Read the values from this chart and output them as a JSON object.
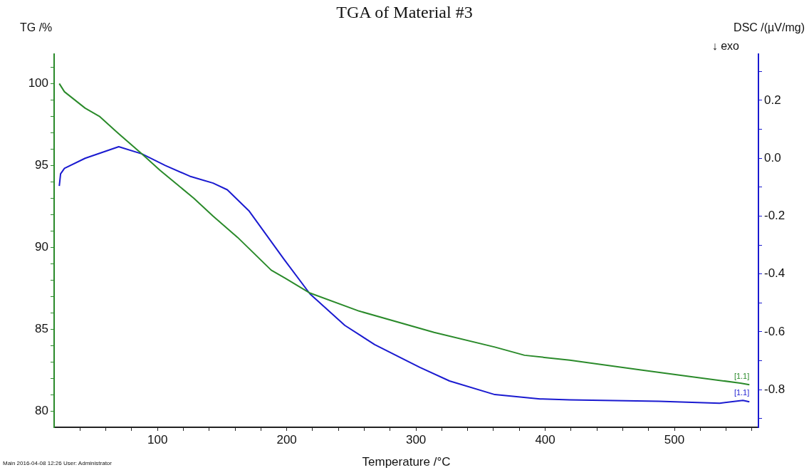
{
  "chart_data": {
    "type": "line",
    "title": "TGA of Material #3",
    "xlabel": "Temperature /°C",
    "ylabel": "TG /%",
    "y2label": "DSC /(µV/mg)",
    "xlim": [
      20,
      565
    ],
    "xticks": [
      {
        "value": 40,
        "label": null
      },
      {
        "value": 60,
        "label": null
      },
      {
        "value": 80,
        "label": null
      },
      100,
      {
        "value": 120,
        "label": null
      },
      {
        "value": 140,
        "label": null
      },
      {
        "value": 160,
        "label": null
      },
      {
        "value": 180,
        "label": null
      },
      200,
      {
        "value": 220,
        "label": null
      },
      {
        "value": 240,
        "label": null
      },
      {
        "value": 260,
        "label": null
      },
      {
        "value": 280,
        "label": null
      },
      300,
      {
        "value": 320,
        "label": null
      },
      {
        "value": 340,
        "label": null
      },
      {
        "value": 360,
        "label": null
      },
      {
        "value": 380,
        "label": null
      },
      400,
      {
        "value": 420,
        "label": null
      },
      {
        "value": 440,
        "label": null
      },
      {
        "value": 460,
        "label": null
      },
      {
        "value": 480,
        "label": null
      },
      500,
      {
        "value": 520,
        "label": null
      },
      {
        "value": 540,
        "label": null
      },
      {
        "value": 560,
        "label": null
      }
    ],
    "ylim": [
      79,
      101.8
    ],
    "yticks": [
      80,
      {
        "value": 81,
        "label": null
      },
      {
        "value": 82,
        "label": null
      },
      {
        "value": 83,
        "label": null
      },
      {
        "value": 84,
        "label": null
      },
      85,
      {
        "value": 86,
        "label": null
      },
      {
        "value": 87,
        "label": null
      },
      {
        "value": 88,
        "label": null
      },
      {
        "value": 89,
        "label": null
      },
      90,
      {
        "value": 91,
        "label": null
      },
      {
        "value": 92,
        "label": null
      },
      {
        "value": 93,
        "label": null
      },
      {
        "value": 94,
        "label": null
      },
      95,
      {
        "value": 96,
        "label": null
      },
      {
        "value": 97,
        "label": null
      },
      {
        "value": 98,
        "label": null
      },
      {
        "value": 99,
        "label": null
      },
      100,
      {
        "value": 101,
        "label": null
      }
    ],
    "y2lim": [
      -0.93,
      0.36
    ],
    "y2ticks": [
      {
        "value": -0.9,
        "label": null
      },
      -0.8,
      {
        "value": -0.7,
        "label": null
      },
      -0.6,
      {
        "value": -0.5,
        "label": null
      },
      -0.4,
      {
        "value": -0.3,
        "label": null
      },
      -0.2,
      {
        "value": -0.1,
        "label": null
      },
      {
        "value": 0,
        "label": "0.0"
      },
      {
        "value": 0.1,
        "label": null
      },
      0.2,
      {
        "value": 0.3,
        "label": null
      }
    ],
    "series": [
      {
        "color": "#2a8a2a",
        "x": [
          24,
          28,
          44,
          55,
          69,
          88,
          102,
          128,
          143,
          162,
          188,
          199,
          218,
          256,
          314,
          361,
          384,
          419,
          474,
          512,
          551,
          558
        ],
        "values": [
          100.0,
          99.5,
          98.5,
          98.0,
          97.0,
          95.7,
          94.7,
          93.0,
          91.9,
          90.6,
          88.6,
          88.1,
          87.2,
          86.1,
          84.8,
          83.9,
          83.4,
          83.1,
          82.5,
          82.1,
          81.7,
          81.6
        ]
      },
      {
        "color": "#1a1ad0",
        "axis": "y2",
        "x": [
          24,
          25,
          28,
          44,
          70,
          88,
          106,
          125,
          143,
          154,
          171,
          198,
          218,
          245,
          268,
          303,
          326,
          361,
          396,
          419,
          488,
          535,
          553,
          558
        ],
        "values": [
          -0.096,
          -0.054,
          -0.035,
          0.0,
          0.04,
          0.015,
          -0.025,
          -0.062,
          -0.086,
          -0.109,
          -0.183,
          -0.35,
          -0.469,
          -0.578,
          -0.644,
          -0.723,
          -0.77,
          -0.817,
          -0.832,
          -0.835,
          -0.84,
          -0.847,
          -0.837,
          -0.842
        ]
      }
    ],
    "annotations": [
      "↓ exo",
      "Main   2016-04-08 12:26   User: Administrator",
      {
        "text": "[1.1]",
        "x": 558,
        "y": 81.6
      },
      {
        "text": "[1.1]",
        "x": 558,
        "y": 80.6
      }
    ],
    "legend": false,
    "grid": false,
    "marker": "none",
    "line_style": "solid"
  }
}
